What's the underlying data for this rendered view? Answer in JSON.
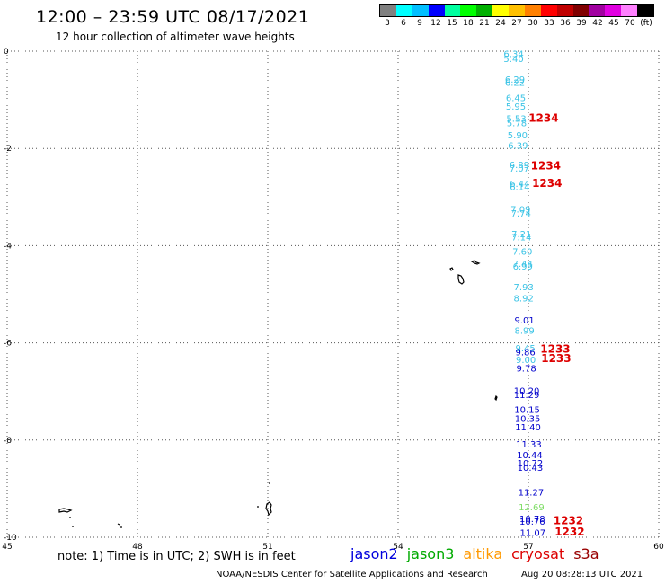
{
  "header": {
    "title": "12:00 – 23:59 UTC 08/17/2021",
    "subtitle": "12 hour collection of altimeter wave heights"
  },
  "colorbar": {
    "colors": [
      "#808080",
      "#00ffff",
      "#00bfff",
      "#0000ff",
      "#00ffa0",
      "#00ff00",
      "#00b000",
      "#ffff00",
      "#ffc000",
      "#ff8000",
      "#ff0000",
      "#c00000",
      "#800000",
      "#a000a0",
      "#e000e0",
      "#ff80ff",
      "#000000"
    ],
    "labels": [
      "3",
      "6",
      "9",
      "12",
      "15",
      "18",
      "21",
      "24",
      "27",
      "30",
      "33",
      "36",
      "39",
      "42",
      "45",
      "70",
      "(ft)"
    ]
  },
  "map": {
    "lon_ticks": [
      "45",
      "48",
      "51",
      "54",
      "57",
      "60"
    ],
    "lat_ticks": [
      "0",
      "-2",
      "-4",
      "-6",
      "-8",
      "-10"
    ],
    "lon_range": [
      45,
      60
    ],
    "lat_range": [
      -10,
      0
    ],
    "swh_points": [
      {
        "v": "6.34",
        "c": "#3cc4e6",
        "lon": 56.66,
        "lat": -0.05
      },
      {
        "v": "5.40",
        "c": "#3cc4e6",
        "lon": 56.66,
        "lat": -0.15
      },
      {
        "v": "6.29",
        "c": "#3cc4e6",
        "lon": 56.69,
        "lat": -0.57
      },
      {
        "v": "6.22",
        "c": "#3cc4e6",
        "lon": 56.69,
        "lat": -0.64
      },
      {
        "v": "6.45",
        "c": "#3cc4e6",
        "lon": 56.71,
        "lat": -0.95
      },
      {
        "v": "5.95",
        "c": "#3cc4e6",
        "lon": 56.71,
        "lat": -1.13
      },
      {
        "v": "5.53",
        "c": "#3cc4e6",
        "lon": 56.72,
        "lat": -1.38
      },
      {
        "v": "5.78",
        "c": "#3cc4e6",
        "lon": 56.73,
        "lat": -1.47
      },
      {
        "v": "5.90",
        "c": "#3cc4e6",
        "lon": 56.75,
        "lat": -1.72
      },
      {
        "v": "6.39",
        "c": "#3cc4e6",
        "lon": 56.76,
        "lat": -1.93
      },
      {
        "v": "6.89",
        "c": "#3cc4e6",
        "lon": 56.79,
        "lat": -2.33
      },
      {
        "v": "7.07",
        "c": "#3cc4e6",
        "lon": 56.79,
        "lat": -2.4
      },
      {
        "v": "6.44",
        "c": "#3cc4e6",
        "lon": 56.8,
        "lat": -2.72
      },
      {
        "v": "6.14",
        "c": "#3cc4e6",
        "lon": 56.8,
        "lat": -2.78
      },
      {
        "v": "7.09",
        "c": "#3cc4e6",
        "lon": 56.82,
        "lat": -3.24
      },
      {
        "v": "7.74",
        "c": "#3cc4e6",
        "lon": 56.83,
        "lat": -3.33
      },
      {
        "v": "7.21",
        "c": "#3cc4e6",
        "lon": 56.84,
        "lat": -3.75
      },
      {
        "v": "7.14",
        "c": "#3cc4e6",
        "lon": 56.84,
        "lat": -3.82
      },
      {
        "v": "7.60",
        "c": "#3cc4e6",
        "lon": 56.86,
        "lat": -4.11
      },
      {
        "v": "7.44",
        "c": "#3cc4e6",
        "lon": 56.87,
        "lat": -4.36
      },
      {
        "v": "6.99",
        "c": "#3cc4e6",
        "lon": 56.87,
        "lat": -4.42
      },
      {
        "v": "7.93",
        "c": "#3cc4e6",
        "lon": 56.89,
        "lat": -4.84
      },
      {
        "v": "8.92",
        "c": "#3cc4e6",
        "lon": 56.89,
        "lat": -5.07
      },
      {
        "v": "9.01",
        "c": "#0000cc",
        "lon": 56.91,
        "lat": -5.53
      },
      {
        "v": "8.99",
        "c": "#3cc4e6",
        "lon": 56.91,
        "lat": -5.74
      },
      {
        "v": "9.45",
        "c": "#3cc4e6",
        "lon": 56.93,
        "lat": -6.1
      },
      {
        "v": "9.86",
        "c": "#0000cc",
        "lon": 56.93,
        "lat": -6.18
      },
      {
        "v": "9.00",
        "c": "#3cc4e6",
        "lon": 56.94,
        "lat": -6.34
      },
      {
        "v": "9.78",
        "c": "#0000cc",
        "lon": 56.95,
        "lat": -6.52
      },
      {
        "v": "10.20",
        "c": "#0000cc",
        "lon": 56.96,
        "lat": -6.98
      },
      {
        "v": "11.29",
        "c": "#0000cc",
        "lon": 56.96,
        "lat": -7.06
      },
      {
        "v": "10.15",
        "c": "#0000cc",
        "lon": 56.97,
        "lat": -7.37
      },
      {
        "v": "10.35",
        "c": "#0000cc",
        "lon": 56.98,
        "lat": -7.55
      },
      {
        "v": "11.40",
        "c": "#0000cc",
        "lon": 56.99,
        "lat": -7.73
      },
      {
        "v": "11.33",
        "c": "#0000cc",
        "lon": 57.01,
        "lat": -8.08
      },
      {
        "v": "10.44",
        "c": "#0000cc",
        "lon": 57.03,
        "lat": -8.3
      },
      {
        "v": "10.72",
        "c": "#0000cc",
        "lon": 57.04,
        "lat": -8.47
      },
      {
        "v": "10.43",
        "c": "#0000cc",
        "lon": 57.04,
        "lat": -8.56
      },
      {
        "v": "11.27",
        "c": "#0000cc",
        "lon": 57.06,
        "lat": -9.07
      },
      {
        "v": "12.69",
        "c": "#7fdd66",
        "lon": 57.07,
        "lat": -9.37
      },
      {
        "v": "10.78",
        "c": "#0000cc",
        "lon": 57.09,
        "lat": -9.61
      },
      {
        "v": "10.76",
        "c": "#0000cc",
        "lon": 57.09,
        "lat": -9.67
      },
      {
        "v": "11.07",
        "c": "#0000cc",
        "lon": 57.1,
        "lat": -9.9
      }
    ],
    "time_labels": [
      {
        "v": "1234",
        "c": "#dd0000",
        "lon": 57.35,
        "lat": -1.38
      },
      {
        "v": "1234",
        "c": "#dd0000",
        "lon": 57.4,
        "lat": -2.36
      },
      {
        "v": "1234",
        "c": "#dd0000",
        "lon": 57.43,
        "lat": -2.72
      },
      {
        "v": "1233",
        "c": "#dd0000",
        "lon": 57.62,
        "lat": -6.13
      },
      {
        "v": "1233",
        "c": "#dd0000",
        "lon": 57.64,
        "lat": -6.32
      },
      {
        "v": "1232",
        "c": "#dd0000",
        "lon": 57.92,
        "lat": -9.66
      },
      {
        "v": "1232",
        "c": "#dd0000",
        "lon": 57.95,
        "lat": -9.89
      }
    ]
  },
  "note": "note:  1) Time is in UTC;  2) SWH is in feet",
  "legend": [
    {
      "label": "jason2",
      "color": "#0000dd"
    },
    {
      "label": "jason3",
      "color": "#00aa00"
    },
    {
      "label": "altika",
      "color": "#ff9900"
    },
    {
      "label": "cryosat",
      "color": "#dd0000"
    },
    {
      "label": "s3a",
      "color": "#990000"
    }
  ],
  "credit": {
    "left": "NOAA/NESDIS Center for Satellite Applications and Research",
    "right": "Aug 20 08:28:13 UTC 2021"
  }
}
